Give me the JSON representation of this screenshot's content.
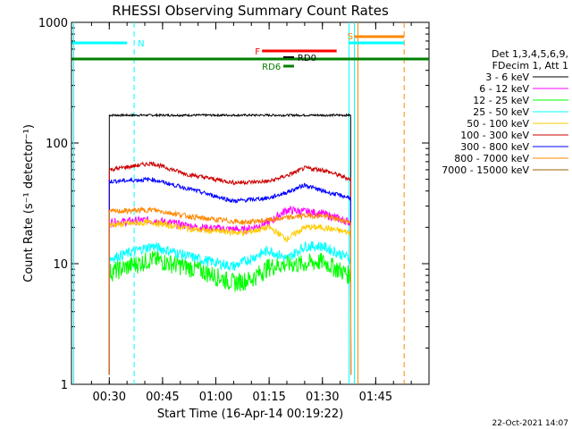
{
  "chart_data": {
    "type": "line",
    "title": "RHESSI Observing Summary Count Rates",
    "xlabel": "Start Time (16-Apr-14 00:19:22)",
    "ylabel": "Count Rate (s⁻¹ detector⁻¹)",
    "y_scale": "log",
    "ylim": [
      1,
      1000
    ],
    "xlim": [
      "00:19:22",
      "02:00:00"
    ],
    "x_ticks": [
      "00:30",
      "00:45",
      "01:00",
      "01:15",
      "01:30",
      "01:45"
    ],
    "y_ticks": [
      "1",
      "10",
      "100",
      "1000"
    ],
    "legend_position": "right",
    "legend_header": [
      "Det 1,3,4,5,6,9,",
      "FDecim 1, Att 1"
    ],
    "series": [
      {
        "name": "3 - 6 keV",
        "color": "#000000",
        "points": [
          [
            "00:30",
            170
          ],
          [
            "00:45",
            170
          ],
          [
            "01:00",
            170
          ],
          [
            "01:10",
            170
          ],
          [
            "01:15",
            170
          ],
          [
            "01:30",
            170
          ],
          [
            "01:38",
            170
          ]
        ]
      },
      {
        "name": "6 - 12 keV",
        "color": "#ff00ff",
        "points": [
          [
            "00:30",
            22
          ],
          [
            "00:42",
            23
          ],
          [
            "00:55",
            20
          ],
          [
            "01:08",
            19
          ],
          [
            "01:15",
            22
          ],
          [
            "01:20",
            28
          ],
          [
            "01:30",
            26
          ],
          [
            "01:38",
            22
          ]
        ]
      },
      {
        "name": "12 - 25 keV",
        "color": "#00ff00",
        "points": [
          [
            "00:30",
            8.5
          ],
          [
            "00:42",
            11
          ],
          [
            "00:55",
            9
          ],
          [
            "01:05",
            7
          ],
          [
            "01:10",
            7.5
          ],
          [
            "01:15",
            9.5
          ],
          [
            "01:20",
            10
          ],
          [
            "01:25",
            10
          ],
          [
            "01:30",
            10.5
          ],
          [
            "01:38",
            8
          ]
        ]
      },
      {
        "name": "25 - 50 keV",
        "color": "#00ffff",
        "points": [
          [
            "00:30",
            11
          ],
          [
            "00:42",
            14
          ],
          [
            "00:55",
            11
          ],
          [
            "01:05",
            9.5
          ],
          [
            "01:15",
            13
          ],
          [
            "01:20",
            11
          ],
          [
            "01:25",
            14
          ],
          [
            "01:30",
            14
          ],
          [
            "01:38",
            11
          ]
        ]
      },
      {
        "name": "50 - 100 keV",
        "color": "#ffcc00",
        "points": [
          [
            "00:30",
            21
          ],
          [
            "00:42",
            22
          ],
          [
            "00:55",
            19
          ],
          [
            "01:08",
            18
          ],
          [
            "01:15",
            20
          ],
          [
            "01:20",
            16
          ],
          [
            "01:25",
            20
          ],
          [
            "01:30",
            20
          ],
          [
            "01:38",
            18
          ]
        ]
      },
      {
        "name": "100 - 300 keV",
        "color": "#cc0000",
        "points": [
          [
            "00:30",
            60
          ],
          [
            "00:42",
            68
          ],
          [
            "00:52",
            55
          ],
          [
            "01:05",
            47
          ],
          [
            "01:15",
            48
          ],
          [
            "01:21",
            55
          ],
          [
            "01:25",
            62
          ],
          [
            "01:30",
            60
          ],
          [
            "01:38",
            50
          ]
        ]
      },
      {
        "name": "300 - 800 keV",
        "color": "#0000ff",
        "points": [
          [
            "00:30",
            48
          ],
          [
            "00:42",
            50
          ],
          [
            "00:52",
            42
          ],
          [
            "01:05",
            33
          ],
          [
            "01:15",
            35
          ],
          [
            "01:21",
            40
          ],
          [
            "01:25",
            45
          ],
          [
            "01:30",
            40
          ],
          [
            "01:38",
            35
          ]
        ]
      },
      {
        "name": "800 - 7000 keV",
        "color": "#ff8800",
        "points": [
          [
            "00:30",
            27
          ],
          [
            "00:42",
            28
          ],
          [
            "00:55",
            24
          ],
          [
            "01:08",
            22
          ],
          [
            "01:15",
            23
          ],
          [
            "01:25",
            25
          ],
          [
            "01:30",
            25
          ],
          [
            "01:38",
            22
          ]
        ]
      },
      {
        "name": "7000 - 15000 keV",
        "color": "#996600",
        "points": []
      }
    ],
    "annotations": [
      {
        "label": "N",
        "color": "#00ffff"
      },
      {
        "label": "S",
        "color": "#ff8800"
      },
      {
        "label": "F",
        "color": "#ff0000"
      },
      {
        "label": "RD0",
        "color": "#000000"
      },
      {
        "label": "RD6",
        "color": "#008000"
      }
    ],
    "footer": "22-Oct-2021 14:07"
  }
}
